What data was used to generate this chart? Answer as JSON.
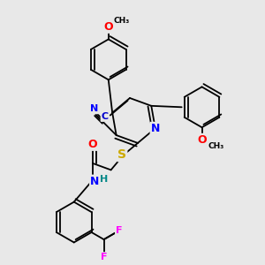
{
  "bg_color": "#e8e8e8",
  "bond_color": "#000000",
  "bond_width": 1.3,
  "atom_colors": {
    "N": "#0000ff",
    "O": "#ff0000",
    "S": "#ccaa00",
    "F": "#ff00ff",
    "C_label": "#0000cc",
    "H": "#008888"
  },
  "figsize": [
    3.0,
    3.0
  ],
  "dpi": 100,
  "xlim": [
    0,
    10
  ],
  "ylim": [
    0,
    10
  ]
}
